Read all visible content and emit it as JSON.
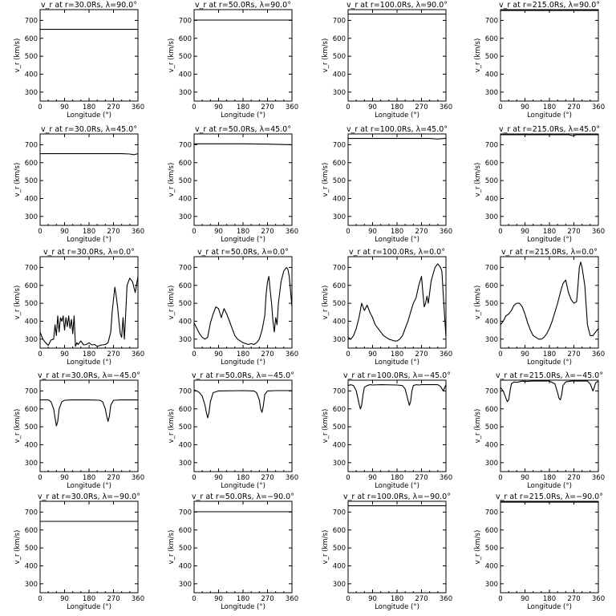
{
  "chart_data": [
    {
      "type": "line",
      "title": "v_r at r=30.0Rs, λ=90.0°",
      "ylabel": "v_r (km/s)",
      "xlabel": "Longitude (°)",
      "xlim": [
        0,
        360
      ],
      "ylim": [
        250,
        760
      ],
      "x": [
        0,
        360
      ],
      "y": [
        650,
        650
      ]
    },
    {
      "type": "line",
      "title": "v_r at r=50.0Rs, λ=90.0°",
      "ylabel": "v_r (km/s)",
      "xlabel": "Longitude (°)",
      "xlim": [
        0,
        360
      ],
      "ylim": [
        250,
        760
      ],
      "x": [
        0,
        360
      ],
      "y": [
        702,
        702
      ]
    },
    {
      "type": "line",
      "title": "v_r at r=100.0Rs, λ=90.0°",
      "ylabel": "v_r (km/s)",
      "xlabel": "Longitude (°)",
      "xlim": [
        0,
        360
      ],
      "ylim": [
        250,
        760
      ],
      "x": [
        0,
        360
      ],
      "y": [
        735,
        735
      ]
    },
    {
      "type": "line",
      "title": "v_r at r=215.0Rs, λ=90.0°",
      "ylabel": "v_r (km/s)",
      "xlabel": "Longitude (°)",
      "xlim": [
        0,
        360
      ],
      "ylim": [
        250,
        760
      ],
      "x": [
        0,
        360
      ],
      "y": [
        755,
        755
      ]
    },
    {
      "type": "line",
      "title": "v_r at r=30.0Rs, λ=45.0°",
      "ylabel": "v_r (km/s)",
      "xlabel": "Longitude (°)",
      "xlim": [
        0,
        360
      ],
      "ylim": [
        250,
        760
      ],
      "x": [
        0,
        300,
        330,
        345,
        360
      ],
      "y": [
        650,
        650,
        648,
        644,
        650
      ]
    },
    {
      "type": "line",
      "title": "v_r at r=50.0Rs, λ=45.0°",
      "ylabel": "v_r (km/s)",
      "xlabel": "Longitude (°)",
      "xlim": [
        0,
        360
      ],
      "ylim": [
        250,
        760
      ],
      "x": [
        0,
        180,
        270,
        360
      ],
      "y": [
        705,
        705,
        703,
        700
      ]
    },
    {
      "type": "line",
      "title": "v_r at r=100.0Rs, λ=45.0°",
      "ylabel": "v_r (km/s)",
      "xlabel": "Longitude (°)",
      "xlim": [
        0,
        360
      ],
      "ylim": [
        250,
        760
      ],
      "x": [
        0,
        300,
        330,
        345,
        360
      ],
      "y": [
        735,
        735,
        732,
        734,
        736
      ]
    },
    {
      "type": "line",
      "title": "v_r at r=215.0Rs, λ=45.0°",
      "ylabel": "v_r (km/s)",
      "xlabel": "Longitude (°)",
      "xlim": [
        0,
        360
      ],
      "ylim": [
        250,
        760
      ],
      "x": [
        0,
        250,
        265,
        280,
        360
      ],
      "y": [
        756,
        756,
        750,
        756,
        756
      ]
    },
    {
      "type": "line",
      "title": "v_r at r=30.0Rs, λ=0.0°",
      "ylabel": "v_r (km/s)",
      "xlabel": "Longitude (°)",
      "xlim": [
        0,
        360
      ],
      "ylim": [
        250,
        760
      ],
      "x": [
        0,
        10,
        20,
        30,
        40,
        50,
        55,
        60,
        65,
        70,
        75,
        80,
        85,
        90,
        95,
        100,
        105,
        110,
        115,
        120,
        125,
        130,
        135,
        140,
        150,
        160,
        170,
        180,
        190,
        200,
        210,
        220,
        230,
        240,
        250,
        260,
        265,
        270,
        275,
        280,
        285,
        290,
        295,
        300,
        305,
        310,
        315,
        320,
        330,
        340,
        350,
        360
      ],
      "y": [
        340,
        300,
        280,
        265,
        295,
        300,
        380,
        320,
        430,
        340,
        420,
        400,
        430,
        350,
        420,
        370,
        430,
        360,
        410,
        330,
        430,
        260,
        280,
        270,
        290,
        268,
        270,
        280,
        268,
        270,
        260,
        265,
        268,
        270,
        280,
        340,
        450,
        520,
        590,
        540,
        480,
        400,
        330,
        310,
        420,
        300,
        450,
        600,
        640,
        620,
        560,
        650
      ]
    },
    {
      "type": "line",
      "title": "v_r at r=50.0Rs, λ=0.0°",
      "ylabel": "v_r (km/s)",
      "xlabel": "Longitude (°)",
      "xlim": [
        0,
        360
      ],
      "ylim": [
        250,
        760
      ],
      "x": [
        0,
        10,
        20,
        30,
        40,
        50,
        60,
        70,
        80,
        90,
        100,
        110,
        120,
        130,
        140,
        150,
        160,
        170,
        180,
        190,
        200,
        210,
        220,
        230,
        240,
        250,
        260,
        265,
        270,
        275,
        280,
        285,
        290,
        295,
        300,
        305,
        310,
        320,
        330,
        340,
        345,
        350,
        360
      ],
      "y": [
        390,
        360,
        330,
        310,
        300,
        310,
        390,
        440,
        480,
        470,
        420,
        470,
        440,
        400,
        360,
        320,
        300,
        290,
        280,
        275,
        270,
        275,
        270,
        280,
        300,
        350,
        430,
        550,
        620,
        650,
        570,
        500,
        400,
        340,
        420,
        380,
        500,
        620,
        680,
        700,
        690,
        650,
        480
      ]
    },
    {
      "type": "line",
      "title": "v_r at r=100.0Rs, λ=0.0°",
      "ylabel": "v_r (km/s)",
      "xlabel": "Longitude (°)",
      "xlim": [
        0,
        360
      ],
      "ylim": [
        250,
        760
      ],
      "x": [
        0,
        10,
        20,
        30,
        40,
        50,
        60,
        70,
        80,
        90,
        100,
        110,
        120,
        130,
        140,
        150,
        160,
        170,
        180,
        190,
        200,
        210,
        220,
        230,
        240,
        250,
        260,
        270,
        275,
        280,
        285,
        290,
        295,
        300,
        305,
        310,
        320,
        330,
        340,
        345,
        350,
        360
      ],
      "y": [
        310,
        300,
        320,
        360,
        420,
        500,
        460,
        490,
        450,
        420,
        380,
        360,
        340,
        320,
        310,
        300,
        295,
        290,
        290,
        300,
        320,
        360,
        400,
        450,
        500,
        530,
        600,
        650,
        560,
        480,
        500,
        540,
        500,
        560,
        620,
        650,
        700,
        720,
        700,
        680,
        550,
        310
      ]
    },
    {
      "type": "line",
      "title": "v_r at r=215.0Rs, λ=0.0°",
      "ylabel": "v_r (km/s)",
      "xlabel": "Longitude (°)",
      "xlim": [
        0,
        360
      ],
      "ylim": [
        250,
        760
      ],
      "x": [
        0,
        10,
        20,
        30,
        40,
        50,
        60,
        70,
        80,
        90,
        100,
        110,
        120,
        130,
        140,
        150,
        160,
        170,
        180,
        190,
        200,
        210,
        220,
        230,
        240,
        250,
        260,
        270,
        280,
        285,
        290,
        295,
        300,
        310,
        320,
        330,
        340,
        350,
        360
      ],
      "y": [
        380,
        400,
        430,
        440,
        460,
        490,
        500,
        500,
        480,
        440,
        390,
        350,
        320,
        310,
        300,
        300,
        310,
        330,
        360,
        400,
        450,
        500,
        560,
        610,
        630,
        560,
        520,
        500,
        510,
        600,
        700,
        730,
        700,
        600,
        380,
        320,
        320,
        340,
        360
      ]
    },
    {
      "type": "line",
      "title": "v_r at r=30.0Rs, λ=−45.0°",
      "ylabel": "v_r (km/s)",
      "xlabel": "Longitude (°)",
      "xlim": [
        0,
        360
      ],
      "ylim": [
        250,
        760
      ],
      "x": [
        0,
        30,
        40,
        50,
        55,
        60,
        65,
        70,
        80,
        90,
        120,
        180,
        220,
        230,
        240,
        245,
        250,
        255,
        260,
        270,
        300,
        360
      ],
      "y": [
        650,
        650,
        640,
        600,
        550,
        505,
        530,
        600,
        640,
        648,
        650,
        650,
        648,
        640,
        600,
        560,
        530,
        560,
        620,
        648,
        650,
        650
      ]
    },
    {
      "type": "line",
      "title": "v_r at r=50.0Rs, λ=−45.0°",
      "ylabel": "v_r (km/s)",
      "xlabel": "Longitude (°)",
      "xlim": [
        0,
        360
      ],
      "ylim": [
        250,
        760
      ],
      "x": [
        0,
        10,
        20,
        30,
        40,
        45,
        50,
        55,
        60,
        70,
        80,
        90,
        180,
        220,
        230,
        240,
        245,
        250,
        255,
        260,
        270,
        300,
        360
      ],
      "y": [
        705,
        700,
        690,
        670,
        620,
        580,
        550,
        580,
        640,
        690,
        695,
        700,
        702,
        700,
        690,
        650,
        600,
        580,
        620,
        680,
        700,
        702,
        702
      ]
    },
    {
      "type": "line",
      "title": "v_r at r=100.0Rs, λ=−45.0°",
      "ylabel": "v_r (km/s)",
      "xlabel": "Longitude (°)",
      "xlim": [
        0,
        360
      ],
      "ylim": [
        250,
        760
      ],
      "x": [
        0,
        10,
        20,
        30,
        40,
        45,
        50,
        55,
        60,
        70,
        80,
        90,
        120,
        180,
        200,
        210,
        220,
        225,
        230,
        235,
        240,
        250,
        260,
        270,
        300,
        330,
        340,
        350,
        360
      ],
      "y": [
        730,
        735,
        730,
        700,
        630,
        600,
        620,
        680,
        720,
        730,
        735,
        733,
        735,
        733,
        730,
        710,
        650,
        620,
        640,
        700,
        730,
        735,
        733,
        735,
        735,
        735,
        725,
        700,
        735
      ]
    },
    {
      "type": "line",
      "title": "v_r at r=215.0Rs, λ=−45.0°",
      "ylabel": "v_r (km/s)",
      "xlabel": "Longitude (°)",
      "xlim": [
        0,
        360
      ],
      "ylim": [
        250,
        760
      ],
      "x": [
        0,
        10,
        20,
        25,
        30,
        35,
        40,
        50,
        60,
        80,
        90,
        120,
        180,
        200,
        210,
        215,
        220,
        225,
        230,
        240,
        260,
        300,
        320,
        330,
        335,
        340,
        345,
        350,
        360
      ],
      "y": [
        720,
        700,
        660,
        640,
        650,
        700,
        740,
        750,
        748,
        755,
        753,
        755,
        755,
        740,
        690,
        660,
        650,
        680,
        730,
        750,
        755,
        755,
        755,
        740,
        720,
        700,
        720,
        745,
        755
      ]
    },
    {
      "type": "line",
      "title": "v_r at r=30.0Rs, λ=−90.0°",
      "ylabel": "v_r (km/s)",
      "xlabel": "Longitude (°)",
      "xlim": [
        0,
        360
      ],
      "ylim": [
        250,
        760
      ],
      "x": [
        0,
        360
      ],
      "y": [
        648,
        648
      ]
    },
    {
      "type": "line",
      "title": "v_r at r=50.0Rs, λ=−90.0°",
      "ylabel": "v_r (km/s)",
      "xlabel": "Longitude (°)",
      "xlim": [
        0,
        360
      ],
      "ylim": [
        250,
        760
      ],
      "x": [
        0,
        360
      ],
      "y": [
        702,
        702
      ]
    },
    {
      "type": "line",
      "title": "v_r at r=100.0Rs, λ=−90.0°",
      "ylabel": "v_r (km/s)",
      "xlabel": "Longitude (°)",
      "xlim": [
        0,
        360
      ],
      "ylim": [
        250,
        760
      ],
      "x": [
        0,
        360
      ],
      "y": [
        735,
        735
      ]
    },
    {
      "type": "line",
      "title": "v_r at r=215.0Rs, λ=−90.0°",
      "ylabel": "v_r (km/s)",
      "xlabel": "Longitude (°)",
      "xlim": [
        0,
        360
      ],
      "ylim": [
        250,
        760
      ],
      "x": [
        0,
        360
      ],
      "y": [
        755,
        755
      ]
    }
  ],
  "axes": {
    "xticks": [
      0,
      90,
      180,
      270,
      360
    ],
    "yticks": [
      300,
      400,
      500,
      600,
      700
    ]
  },
  "colors": {
    "line": "#000000",
    "axis": "#000000",
    "background": "#ffffff"
  }
}
